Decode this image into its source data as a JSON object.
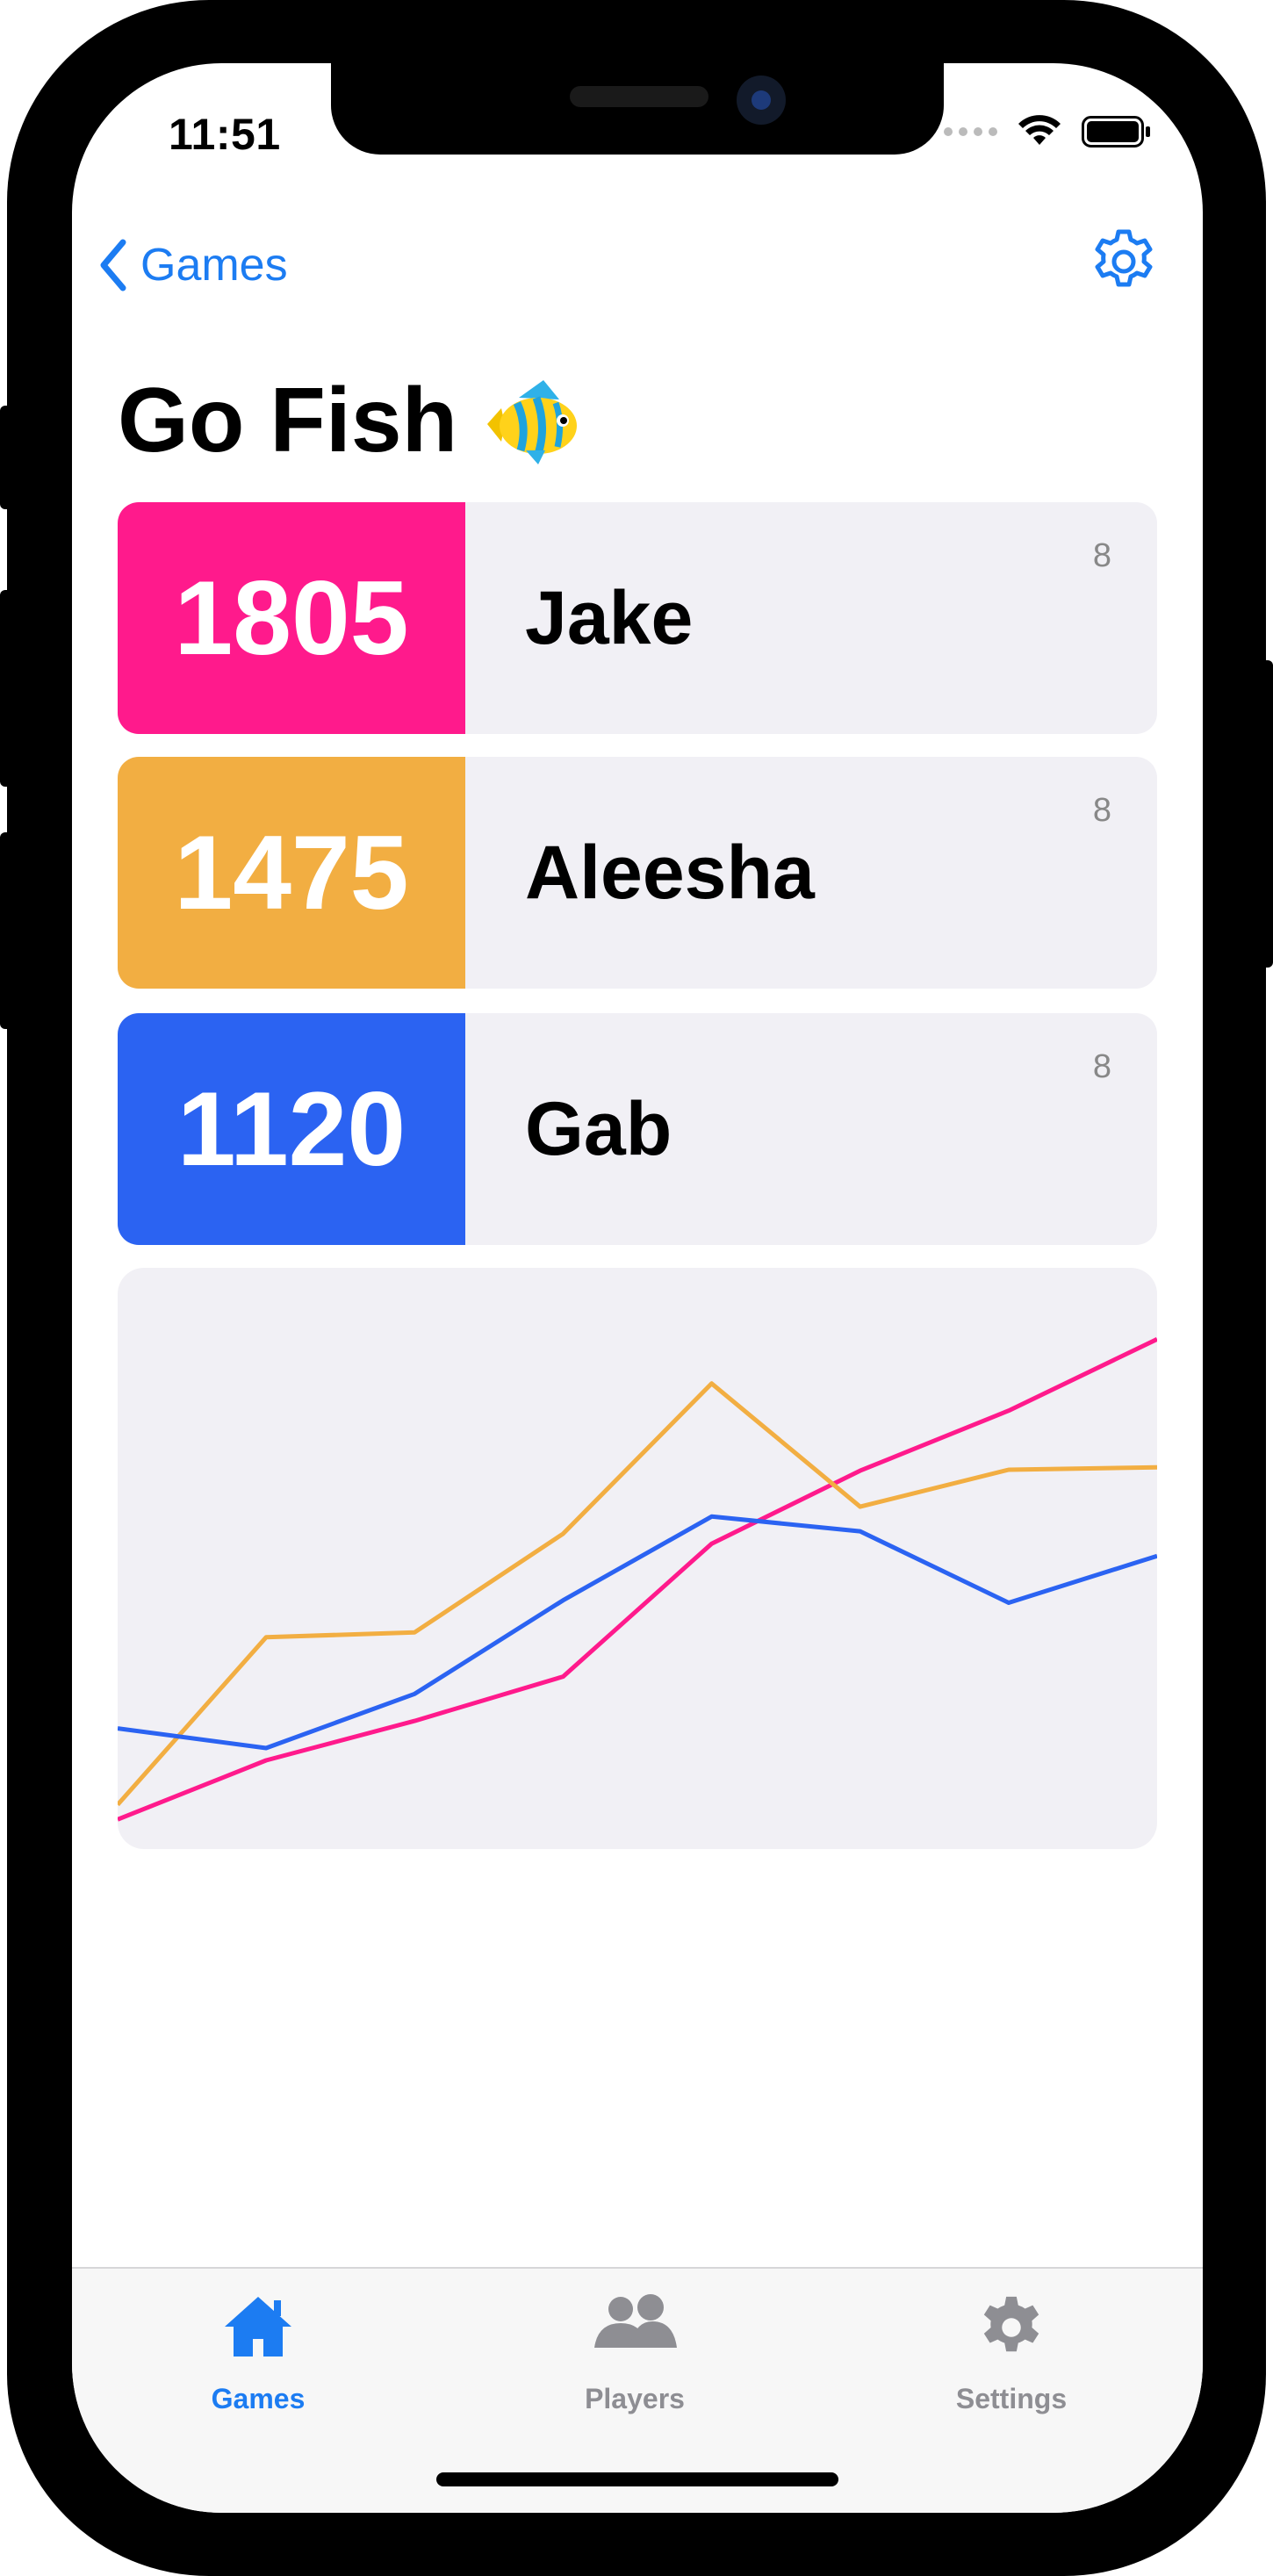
{
  "status_bar": {
    "time": "11:51"
  },
  "nav": {
    "back_label": "Games"
  },
  "page": {
    "title": "Go Fish"
  },
  "players": [
    {
      "score": "1805",
      "name": "Jake",
      "count": "8",
      "color": "#ff1a8c"
    },
    {
      "score": "1475",
      "name": "Aleesha",
      "count": "8",
      "color": "#f2ae42"
    },
    {
      "score": "1120",
      "name": "Gab",
      "count": "8",
      "color": "#2b63f2"
    }
  ],
  "chart_data": {
    "type": "line",
    "x": [
      1,
      2,
      3,
      4,
      5,
      6,
      7,
      8
    ],
    "series": [
      {
        "name": "Jake",
        "color": "#ff1a8c",
        "values": [
          440,
          560,
          640,
          730,
          1000,
          1148,
          1270,
          1415
        ]
      },
      {
        "name": "Aleesha",
        "color": "#f2ae42",
        "values": [
          470,
          810,
          820,
          1020,
          1325,
          1075,
          1150,
          1155
        ]
      },
      {
        "name": "Gab",
        "color": "#2b63f2",
        "values": [
          625,
          585,
          695,
          885,
          1055,
          1025,
          880,
          975
        ]
      }
    ],
    "ylim": [
      380,
      1560
    ],
    "grid": false
  },
  "tabs": [
    {
      "label": "Games",
      "active": true
    },
    {
      "label": "Players",
      "active": false
    },
    {
      "label": "Settings",
      "active": false
    }
  ],
  "colors": {
    "accent": "#1c7cf2",
    "inactive": "#8e8e93",
    "card": "#f1f0f5"
  }
}
